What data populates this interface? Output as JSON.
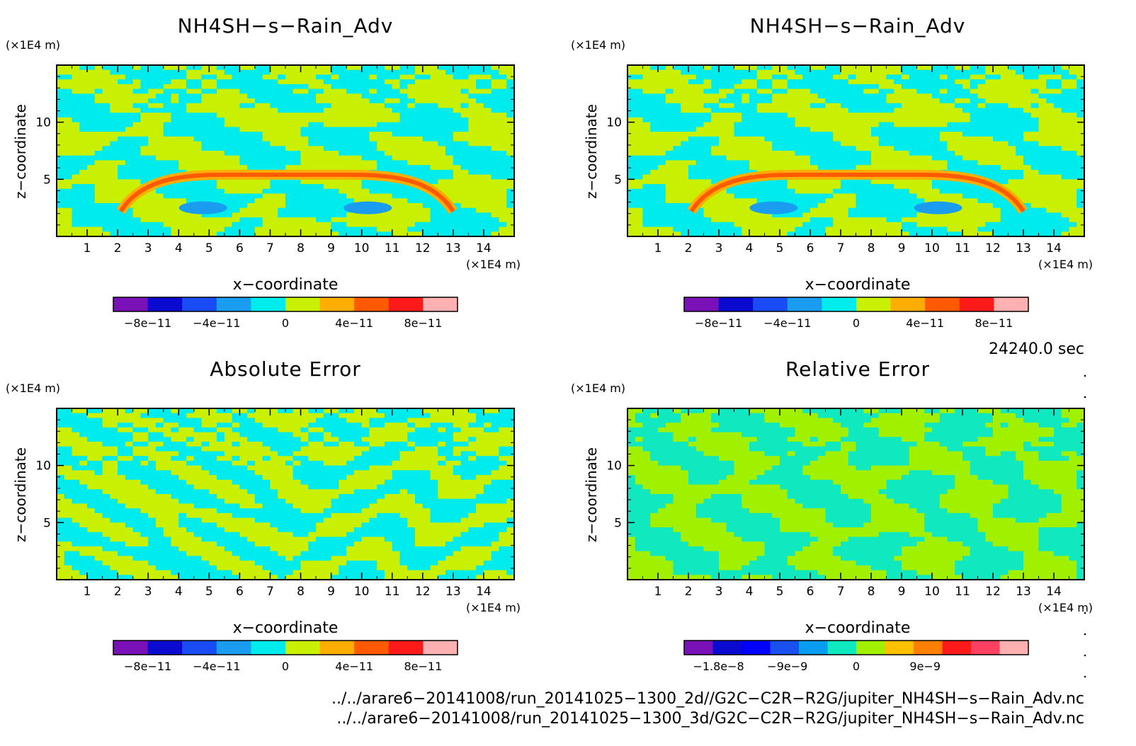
{
  "panels": [
    {
      "title": "NH4SH−s−Rain_Adv",
      "unit_label": "(×1E4 m)",
      "x_unit_label": "(×1E4 m)",
      "xlabel": "x−coordinate",
      "ylabel": "z−coordinate",
      "colorbar": {
        "colors": [
          "#7a10b8",
          "#0a0ad0",
          "#1a4cf5",
          "#1a9cf0",
          "#00ecec",
          "#c8f000",
          "#ffae00",
          "#ff5a00",
          "#ff1a1a",
          "#ffb0b0"
        ],
        "tick_labels": [
          "−8e−11",
          "−4e−11",
          "0",
          "4e−11",
          "8e−11"
        ],
        "tick_values": [
          -8e-11,
          -4e-11,
          0,
          4e-11,
          8e-11
        ],
        "range": [
          -1e-10,
          1e-10
        ]
      }
    },
    {
      "title": "NH4SH−s−Rain_Adv",
      "unit_label": "(×1E4 m)",
      "x_unit_label": "(×1E4 m)",
      "xlabel": "x−coordinate",
      "ylabel": "z−coordinate",
      "colorbar": {
        "colors": [
          "#7a10b8",
          "#0a0ad0",
          "#1a4cf5",
          "#1a9cf0",
          "#00ecec",
          "#c8f000",
          "#ffae00",
          "#ff5a00",
          "#ff1a1a",
          "#ffb0b0"
        ],
        "tick_labels": [
          "−8e−11",
          "−4e−11",
          "0",
          "4e−11",
          "8e−11"
        ],
        "tick_values": [
          -8e-11,
          -4e-11,
          0,
          4e-11,
          8e-11
        ],
        "range": [
          -1e-10,
          1e-10
        ]
      }
    },
    {
      "title": "Absolute Error",
      "unit_label": "(×1E4 m)",
      "x_unit_label": "(×1E4 m)",
      "xlabel": "x−coordinate",
      "ylabel": "z−coordinate",
      "colorbar": {
        "colors": [
          "#7a10b8",
          "#0a0ad0",
          "#1a4cf5",
          "#1a9cf0",
          "#00ecec",
          "#c8f000",
          "#ffae00",
          "#ff5a00",
          "#ff1a1a",
          "#ffb0b0"
        ],
        "tick_labels": [
          "−8e−11",
          "−4e−11",
          "0",
          "4e−11",
          "8e−11"
        ],
        "tick_values": [
          -8e-11,
          -4e-11,
          0,
          4e-11,
          8e-11
        ],
        "range": [
          -1e-10,
          1e-10
        ]
      }
    },
    {
      "title": "Relative Error",
      "unit_label": "(×1E4 m)",
      "x_unit_label": "(×1E4 m)",
      "xlabel": "x−coordinate",
      "ylabel": "z−coordinate",
      "colorbar": {
        "colors": [
          "#7a10b8",
          "#0a0ad0",
          "#0000ff",
          "#1a50f0",
          "#0a9cf0",
          "#10e8c0",
          "#a0f000",
          "#ffc000",
          "#ff8000",
          "#ff1a1a",
          "#ff4060",
          "#ffb0b0"
        ],
        "tick_labels": [
          "−1.8e−8",
          "−9e−9",
          "0",
          "9e−9"
        ],
        "tick_values": [
          -1.8e-08,
          -9e-09,
          0,
          9e-09
        ],
        "range": [
          -2.25e-08,
          2.25e-08
        ]
      }
    }
  ],
  "time_label": "24240.0 sec",
  "files": [
    "../../arare6−20141008/run_20141025−1300_2d//G2C−C2R−R2G/jupiter_NH4SH−s−Rain_Adv.nc",
    "../../arare6−20141008/run_20141025−1300_3d/G2C−C2R−R2G/jupiter_NH4SH−s−Rain_Adv.nc"
  ],
  "chart_data": [
    {
      "type": "heatmap",
      "title": "NH4SH−s−Rain_Adv",
      "xlabel": "x−coordinate",
      "ylabel": "z−coordinate",
      "x_unit": "(×1E4 m)",
      "y_unit": "(×1E4 m)",
      "xlim": [
        0,
        15
      ],
      "ylim": [
        0,
        15
      ],
      "x_ticks": [
        1,
        2,
        3,
        4,
        5,
        6,
        7,
        8,
        9,
        10,
        11,
        12,
        13,
        14
      ],
      "y_ticks": [
        5,
        10
      ],
      "field_range": [
        -1e-10,
        1e-10
      ],
      "features": [
        {
          "kind": "arc",
          "x_range": [
            2.1,
            13.0
          ],
          "z_peak": 5.4,
          "value": 6e-11
        },
        {
          "kind": "blob",
          "x": 4.8,
          "z": 2.5,
          "value": -4e-11
        },
        {
          "kind": "blob",
          "x": 10.2,
          "z": 2.5,
          "value": -4e-11
        }
      ]
    },
    {
      "type": "heatmap",
      "title": "NH4SH−s−Rain_Adv",
      "xlabel": "x−coordinate",
      "ylabel": "z−coordinate",
      "x_unit": "(×1E4 m)",
      "y_unit": "(×1E4 m)",
      "xlim": [
        0,
        15
      ],
      "ylim": [
        0,
        15
      ],
      "x_ticks": [
        1,
        2,
        3,
        4,
        5,
        6,
        7,
        8,
        9,
        10,
        11,
        12,
        13,
        14
      ],
      "y_ticks": [
        5,
        10
      ],
      "field_range": [
        -1e-10,
        1e-10
      ],
      "features": [
        {
          "kind": "arc",
          "x_range": [
            2.1,
            13.0
          ],
          "z_peak": 5.4,
          "value": 6e-11
        },
        {
          "kind": "blob",
          "x": 4.8,
          "z": 2.5,
          "value": -4e-11
        },
        {
          "kind": "blob",
          "x": 10.2,
          "z": 2.5,
          "value": -4e-11
        }
      ]
    },
    {
      "type": "heatmap",
      "title": "Absolute Error",
      "xlabel": "x−coordinate",
      "ylabel": "z−coordinate",
      "x_unit": "(×1E4 m)",
      "y_unit": "(×1E4 m)",
      "xlim": [
        0,
        15
      ],
      "ylim": [
        0,
        15
      ],
      "x_ticks": [
        1,
        2,
        3,
        4,
        5,
        6,
        7,
        8,
        9,
        10,
        11,
        12,
        13,
        14
      ],
      "y_ticks": [
        5,
        10
      ],
      "field_range": [
        -1e-10,
        1e-10
      ]
    },
    {
      "type": "heatmap",
      "title": "Relative Error",
      "xlabel": "x−coordinate",
      "ylabel": "z−coordinate",
      "x_unit": "(×1E4 m)",
      "y_unit": "(×1E4 m)",
      "xlim": [
        0,
        15
      ],
      "ylim": [
        0,
        15
      ],
      "x_ticks": [
        1,
        2,
        3,
        4,
        5,
        6,
        7,
        8,
        9,
        10,
        11,
        12,
        13,
        14
      ],
      "y_ticks": [
        5,
        10
      ],
      "field_range": [
        -2.25e-08,
        2.25e-08
      ]
    }
  ]
}
